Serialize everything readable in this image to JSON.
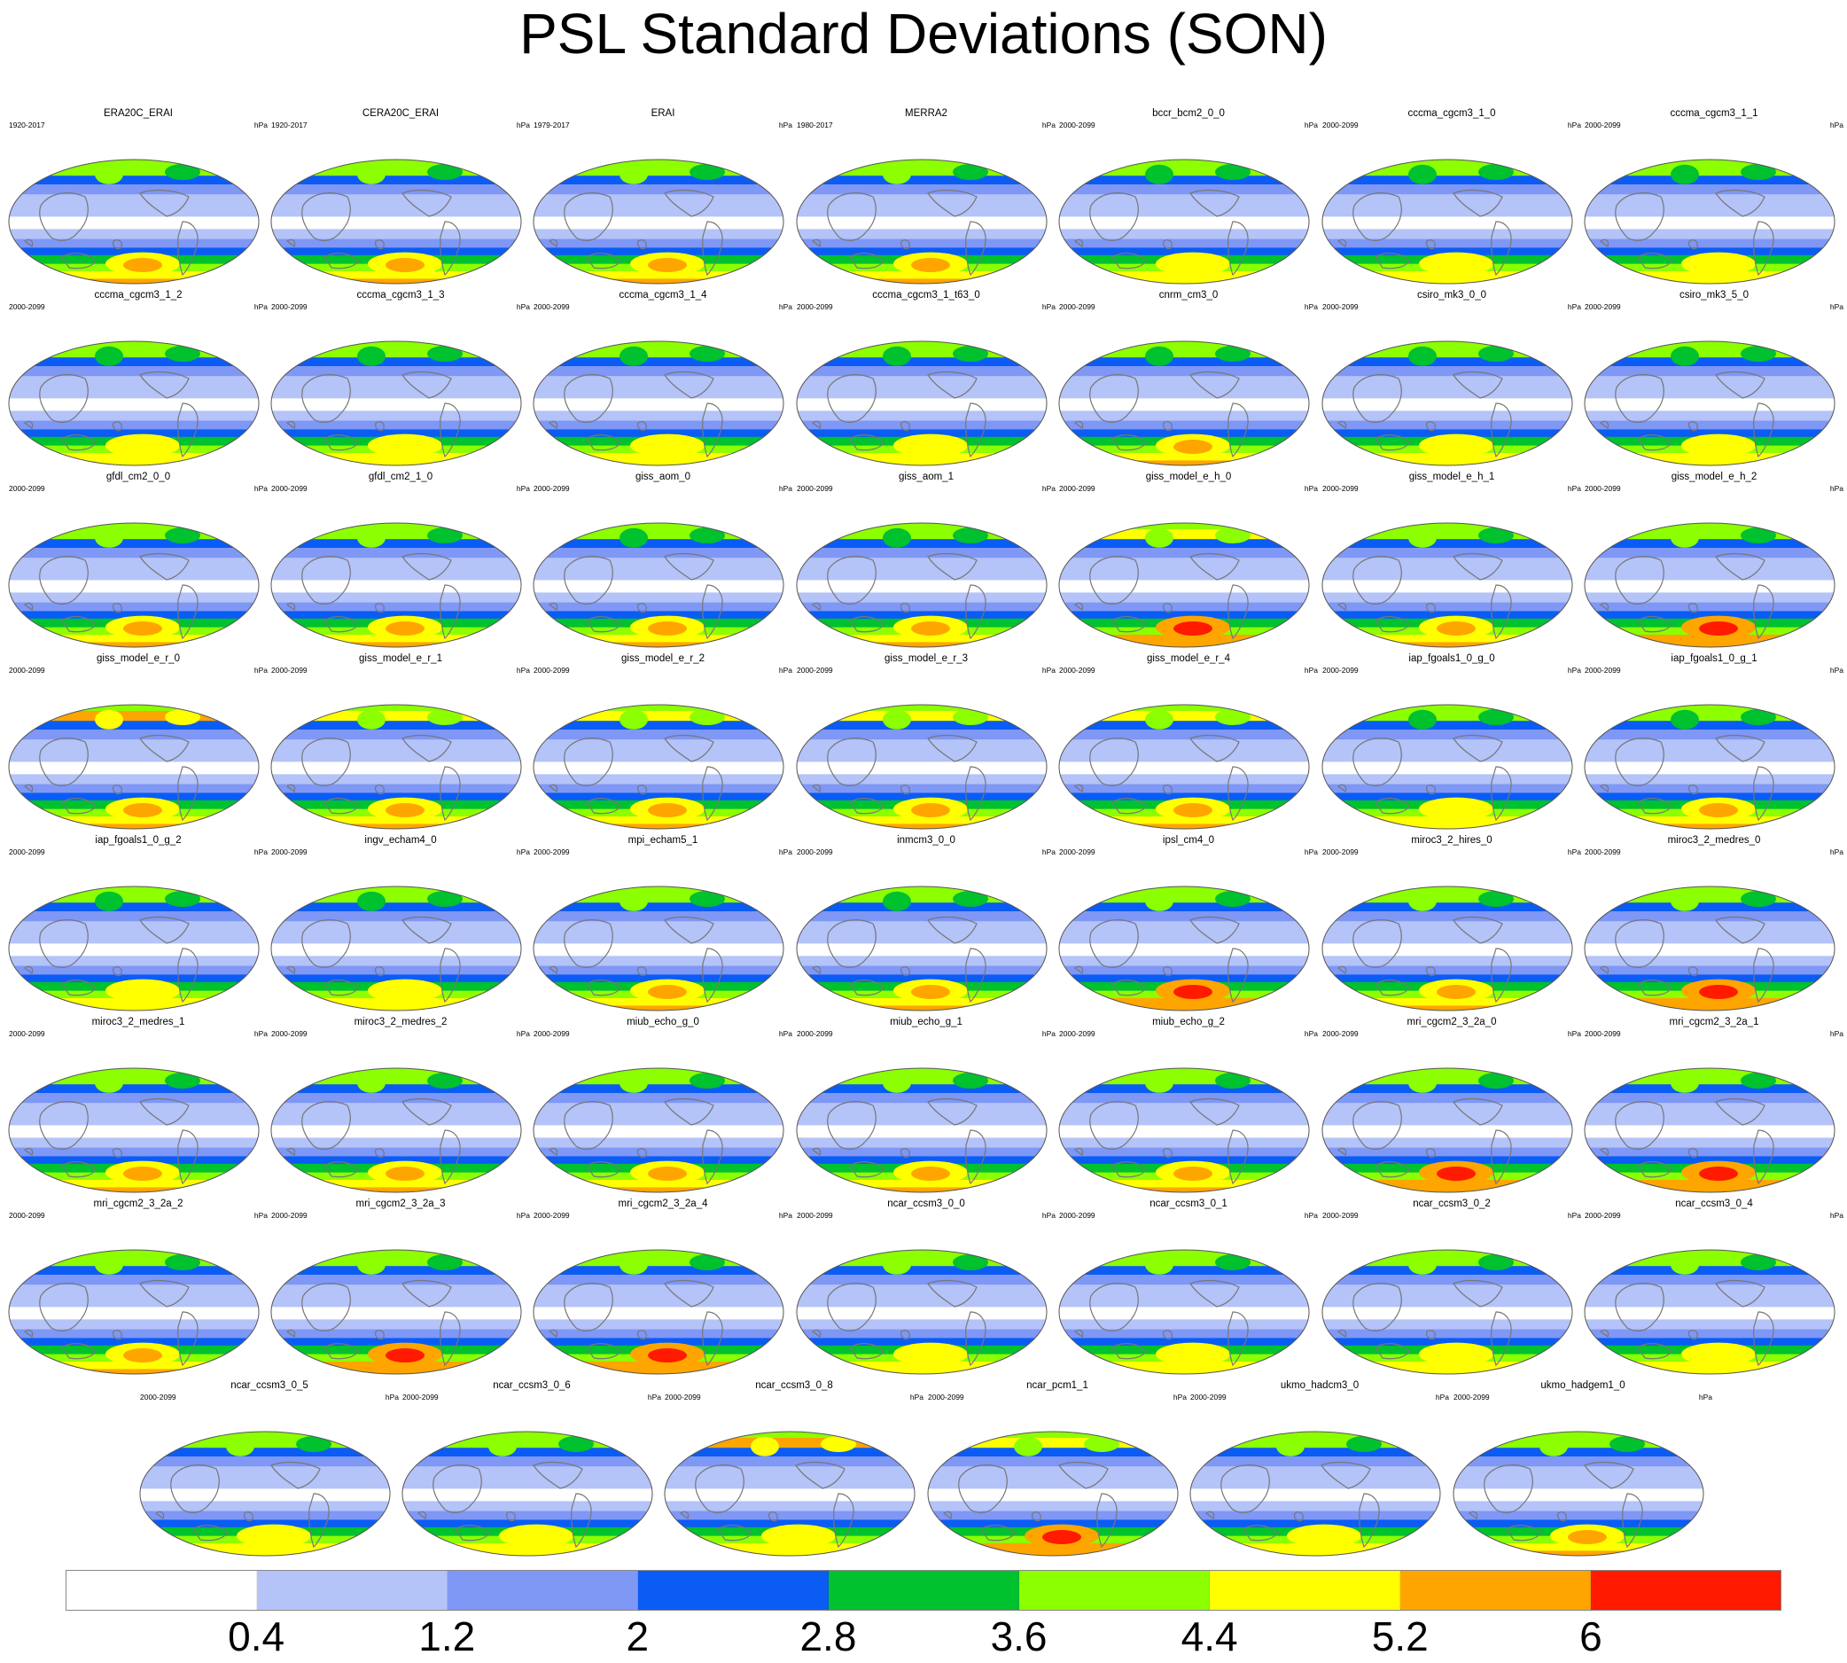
{
  "title": "PSL Standard Deviations (SON)",
  "chart_data": {
    "type": "contour-map-panels",
    "variable": "PSL",
    "statistic": "Standard Deviation",
    "season": "SON",
    "units": "hPa",
    "colorbar": {
      "levels": [
        0.4,
        1.2,
        2,
        2.8,
        3.6,
        4.4,
        5.2,
        6
      ],
      "colors": [
        "#ffffff",
        "#b4c3f8",
        "#7f97f5",
        "#0a5cf5",
        "#00c12e",
        "#8cff00",
        "#ffff00",
        "#ffa500",
        "#ff1a00"
      ]
    },
    "panels": [
      {
        "name": "ERA20C_ERAI",
        "years": "1920-2017",
        "units": "hPa",
        "north_max": 4.0,
        "south_max": 5.4
      },
      {
        "name": "CERA20C_ERAI",
        "years": "1920-2017",
        "units": "hPa",
        "north_max": 4.0,
        "south_max": 5.5
      },
      {
        "name": "ERAI",
        "years": "1979-2017",
        "units": "hPa",
        "north_max": 4.0,
        "south_max": 5.4
      },
      {
        "name": "MERRA2",
        "years": "1980-2017",
        "units": "hPa",
        "north_max": 4.0,
        "south_max": 5.4
      },
      {
        "name": "bccr_bcm2_0_0",
        "years": "2000-2099",
        "units": "hPa",
        "north_max": 3.8,
        "south_max": 4.6
      },
      {
        "name": "cccma_cgcm3_1_0",
        "years": "2000-2099",
        "units": "hPa",
        "north_max": 3.8,
        "south_max": 4.6
      },
      {
        "name": "cccma_cgcm3_1_1",
        "years": "2000-2099",
        "units": "hPa",
        "north_max": 3.8,
        "south_max": 4.6
      },
      {
        "name": "cccma_cgcm3_1_2",
        "years": "2000-2099",
        "units": "hPa",
        "north_max": 3.8,
        "south_max": 4.6
      },
      {
        "name": "cccma_cgcm3_1_3",
        "years": "2000-2099",
        "units": "hPa",
        "north_max": 3.8,
        "south_max": 4.6
      },
      {
        "name": "cccma_cgcm3_1_4",
        "years": "2000-2099",
        "units": "hPa",
        "north_max": 3.8,
        "south_max": 4.6
      },
      {
        "name": "cccma_cgcm3_1_t63_0",
        "years": "2000-2099",
        "units": "hPa",
        "north_max": 3.8,
        "south_max": 4.6
      },
      {
        "name": "cnrm_cm3_0",
        "years": "2000-2099",
        "units": "hPa",
        "north_max": 3.8,
        "south_max": 5.4
      },
      {
        "name": "csiro_mk3_0_0",
        "years": "2000-2099",
        "units": "hPa",
        "north_max": 3.8,
        "south_max": 4.6
      },
      {
        "name": "csiro_mk3_5_0",
        "years": "2000-2099",
        "units": "hPa",
        "north_max": 3.8,
        "south_max": 4.6
      },
      {
        "name": "gfdl_cm2_0_0",
        "years": "2000-2099",
        "units": "hPa",
        "north_max": 4.0,
        "south_max": 5.4
      },
      {
        "name": "gfdl_cm2_1_0",
        "years": "2000-2099",
        "units": "hPa",
        "north_max": 4.0,
        "south_max": 5.4
      },
      {
        "name": "giss_aom_0",
        "years": "2000-2099",
        "units": "hPa",
        "north_max": 3.8,
        "south_max": 5.4
      },
      {
        "name": "giss_aom_1",
        "years": "2000-2099",
        "units": "hPa",
        "north_max": 3.8,
        "south_max": 5.4
      },
      {
        "name": "giss_model_e_h_0",
        "years": "2000-2099",
        "units": "hPa",
        "north_max": 4.4,
        "south_max": 6.2
      },
      {
        "name": "giss_model_e_h_1",
        "years": "2000-2099",
        "units": "hPa",
        "north_max": 4.0,
        "south_max": 5.6
      },
      {
        "name": "giss_model_e_h_2",
        "years": "2000-2099",
        "units": "hPa",
        "north_max": 4.0,
        "south_max": 6.0
      },
      {
        "name": "giss_model_e_r_0",
        "years": "2000-2099",
        "units": "hPa",
        "north_max": 5.4,
        "south_max": 5.4
      },
      {
        "name": "giss_model_e_r_1",
        "years": "2000-2099",
        "units": "hPa",
        "north_max": 4.4,
        "south_max": 5.4
      },
      {
        "name": "giss_model_e_r_2",
        "years": "2000-2099",
        "units": "hPa",
        "north_max": 4.4,
        "south_max": 5.4
      },
      {
        "name": "giss_model_e_r_3",
        "years": "2000-2099",
        "units": "hPa",
        "north_max": 4.4,
        "south_max": 5.4
      },
      {
        "name": "giss_model_e_r_4",
        "years": "2000-2099",
        "units": "hPa",
        "north_max": 4.4,
        "south_max": 5.4
      },
      {
        "name": "iap_fgoals1_0_g_0",
        "years": "2000-2099",
        "units": "hPa",
        "north_max": 3.8,
        "south_max": 5.0
      },
      {
        "name": "iap_fgoals1_0_g_1",
        "years": "2000-2099",
        "units": "hPa",
        "north_max": 3.8,
        "south_max": 5.4
      },
      {
        "name": "iap_fgoals1_0_g_2",
        "years": "2000-2099",
        "units": "hPa",
        "north_max": 3.8,
        "south_max": 4.6
      },
      {
        "name": "ingv_echam4_0",
        "years": "2000-2099",
        "units": "hPa",
        "north_max": 3.8,
        "south_max": 4.6
      },
      {
        "name": "mpi_echam5_1",
        "years": "2000-2099",
        "units": "hPa",
        "north_max": 4.0,
        "south_max": 5.6
      },
      {
        "name": "inmcm3_0_0",
        "years": "2000-2099",
        "units": "hPa",
        "north_max": 3.8,
        "south_max": 5.6
      },
      {
        "name": "ipsl_cm4_0",
        "years": "2000-2099",
        "units": "hPa",
        "north_max": 4.0,
        "south_max": 6.4
      },
      {
        "name": "miroc3_2_hires_0",
        "years": "2000-2099",
        "units": "hPa",
        "north_max": 4.0,
        "south_max": 5.6
      },
      {
        "name": "miroc3_2_medres_0",
        "years": "2000-2099",
        "units": "hPa",
        "north_max": 4.0,
        "south_max": 6.2
      },
      {
        "name": "miroc3_2_medres_1",
        "years": "2000-2099",
        "units": "hPa",
        "north_max": 4.0,
        "south_max": 5.6
      },
      {
        "name": "miroc3_2_medres_2",
        "years": "2000-2099",
        "units": "hPa",
        "north_max": 4.0,
        "south_max": 5.6
      },
      {
        "name": "miub_echo_g_0",
        "years": "2000-2099",
        "units": "hPa",
        "north_max": 4.0,
        "south_max": 5.6
      },
      {
        "name": "miub_echo_g_1",
        "years": "2000-2099",
        "units": "hPa",
        "north_max": 4.0,
        "south_max": 5.4
      },
      {
        "name": "miub_echo_g_2",
        "years": "2000-2099",
        "units": "hPa",
        "north_max": 4.0,
        "south_max": 5.4
      },
      {
        "name": "mri_cgcm2_3_2a_0",
        "years": "2000-2099",
        "units": "hPa",
        "north_max": 4.0,
        "south_max": 6.2
      },
      {
        "name": "mri_cgcm2_3_2a_1",
        "years": "2000-2099",
        "units": "hPa",
        "north_max": 4.0,
        "south_max": 6.2
      },
      {
        "name": "mri_cgcm2_3_2a_2",
        "years": "2000-2099",
        "units": "hPa",
        "north_max": 4.0,
        "south_max": 5.6
      },
      {
        "name": "mri_cgcm2_3_2a_3",
        "years": "2000-2099",
        "units": "hPa",
        "north_max": 4.0,
        "south_max": 6.2
      },
      {
        "name": "mri_cgcm2_3_2a_4",
        "years": "2000-2099",
        "units": "hPa",
        "north_max": 4.0,
        "south_max": 6.2
      },
      {
        "name": "ncar_ccsm3_0_0",
        "years": "2000-2099",
        "units": "hPa",
        "north_max": 4.0,
        "south_max": 4.6
      },
      {
        "name": "ncar_ccsm3_0_1",
        "years": "2000-2099",
        "units": "hPa",
        "north_max": 4.0,
        "south_max": 4.6
      },
      {
        "name": "ncar_ccsm3_0_2",
        "years": "2000-2099",
        "units": "hPa",
        "north_max": 4.0,
        "south_max": 4.6
      },
      {
        "name": "ncar_ccsm3_0_4",
        "years": "2000-2099",
        "units": "hPa",
        "north_max": 4.0,
        "south_max": 4.6
      },
      {
        "name": "ncar_ccsm3_0_5",
        "years": "2000-2099",
        "units": "hPa",
        "north_max": 4.0,
        "south_max": 4.6
      },
      {
        "name": "ncar_ccsm3_0_6",
        "years": "2000-2099",
        "units": "hPa",
        "north_max": 4.0,
        "south_max": 4.6
      },
      {
        "name": "ncar_ccsm3_0_8",
        "years": "2000-2099",
        "units": "hPa",
        "north_max": 5.4,
        "south_max": 4.6
      },
      {
        "name": "ncar_pcm1_1",
        "years": "2000-2099",
        "units": "hPa",
        "north_max": 4.6,
        "south_max": 6.2
      },
      {
        "name": "ukmo_hadcm3_0",
        "years": "2000-2099",
        "units": "hPa",
        "north_max": 4.0,
        "south_max": 4.6
      },
      {
        "name": "ukmo_hadgem1_0",
        "years": "2000-2099",
        "units": "hPa",
        "north_max": 4.0,
        "south_max": 5.6
      }
    ]
  }
}
